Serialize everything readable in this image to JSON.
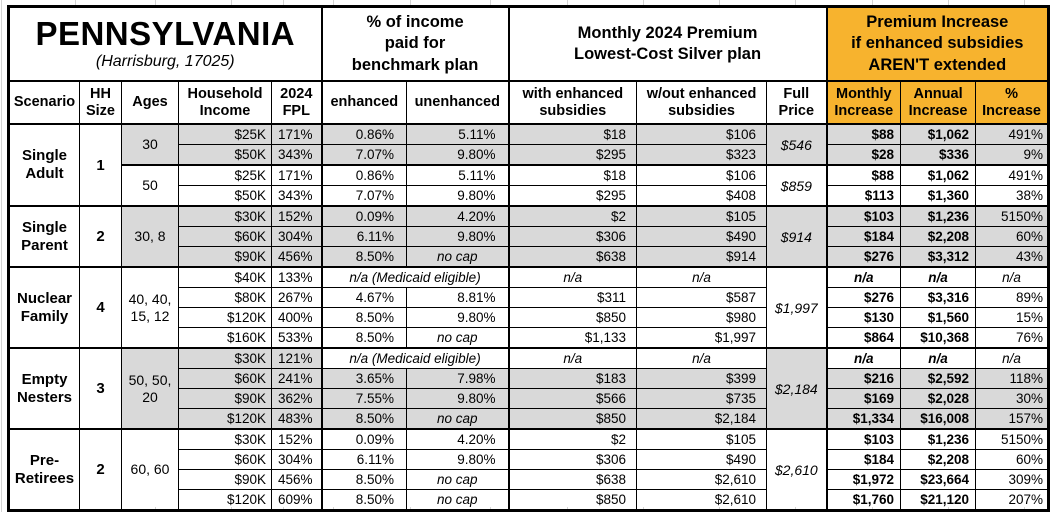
{
  "title": {
    "state": "PENNSYLVANIA",
    "subtitle": "(Harrisburg, 17025)"
  },
  "header_groups": {
    "pct_income": "% of income\npaid for\nbenchmark plan",
    "premium": "Monthly 2024 Premium\nLowest-Cost Silver plan",
    "increase": "Premium Increase\nif enhanced subsidies\nAREN'T extended"
  },
  "columns": {
    "scenario": "Scenario",
    "hh_size": "HH\nSize",
    "ages": "Ages",
    "income": "Household\nIncome",
    "fpl": "2024\nFPL",
    "enhanced": "enhanced",
    "unenhanced": "unenhanced",
    "with_sub": "with enhanced\nsubsidies",
    "wout_sub": "w/out enhanced\nsubsidies",
    "full_price": "Full\nPrice",
    "monthly": "Monthly\nIncrease",
    "annual": "Annual\nIncrease",
    "pct": "%\nIncrease"
  },
  "colors": {
    "header_orange": "#F7B32E",
    "row_shade": "#D9D9D9",
    "border": "#000000"
  },
  "sections": [
    {
      "scenario": "Single\nAdult",
      "hh_size": "1",
      "age_groups": [
        {
          "label": "30",
          "rows": 2,
          "shaded": true
        },
        {
          "label": "50",
          "rows": 2,
          "shaded": false
        }
      ],
      "full_price_groups": [
        {
          "value": "$546",
          "rows": 2,
          "shaded": true
        },
        {
          "value": "$859",
          "rows": 2,
          "shaded": false
        }
      ],
      "rows": [
        {
          "income": "$25K",
          "fpl": "171%",
          "enhanced": "0.86%",
          "unenhanced": "5.11%",
          "with_sub": "$18",
          "wout_sub": "$106",
          "monthly": "$88",
          "annual": "$1,062",
          "pct": "491%",
          "shaded": true
        },
        {
          "income": "$50K",
          "fpl": "343%",
          "enhanced": "7.07%",
          "unenhanced": "9.80%",
          "with_sub": "$295",
          "wout_sub": "$323",
          "monthly": "$28",
          "annual": "$336",
          "pct": "9%",
          "shaded": true
        },
        {
          "income": "$25K",
          "fpl": "171%",
          "enhanced": "0.86%",
          "unenhanced": "5.11%",
          "with_sub": "$18",
          "wout_sub": "$106",
          "monthly": "$88",
          "annual": "$1,062",
          "pct": "491%",
          "shaded": false
        },
        {
          "income": "$50K",
          "fpl": "343%",
          "enhanced": "7.07%",
          "unenhanced": "9.80%",
          "with_sub": "$295",
          "wout_sub": "$408",
          "monthly": "$113",
          "annual": "$1,360",
          "pct": "38%",
          "shaded": false
        }
      ]
    },
    {
      "scenario": "Single\nParent",
      "hh_size": "2",
      "age_groups": [
        {
          "label": "30, 8",
          "rows": 3,
          "shaded": true
        }
      ],
      "full_price_groups": [
        {
          "value": "$914",
          "rows": 3,
          "shaded": true
        }
      ],
      "rows": [
        {
          "income": "$30K",
          "fpl": "152%",
          "enhanced": "0.09%",
          "unenhanced": "4.20%",
          "with_sub": "$2",
          "wout_sub": "$105",
          "monthly": "$103",
          "annual": "$1,236",
          "pct": "5150%",
          "shaded": true
        },
        {
          "income": "$60K",
          "fpl": "304%",
          "enhanced": "6.11%",
          "unenhanced": "9.80%",
          "with_sub": "$306",
          "wout_sub": "$490",
          "monthly": "$184",
          "annual": "$2,208",
          "pct": "60%",
          "shaded": true
        },
        {
          "income": "$90K",
          "fpl": "456%",
          "enhanced": "8.50%",
          "unenhanced": "no cap",
          "with_sub": "$638",
          "wout_sub": "$914",
          "monthly": "$276",
          "annual": "$3,312",
          "pct": "43%",
          "shaded": true
        }
      ]
    },
    {
      "scenario": "Nuclear\nFamily",
      "hh_size": "4",
      "age_groups": [
        {
          "label": "40, 40,\n15, 12",
          "rows": 4,
          "shaded": false
        }
      ],
      "full_price_groups": [
        {
          "value": "$1,997",
          "rows": 4,
          "shaded": false
        }
      ],
      "rows": [
        {
          "income": "$40K",
          "fpl": "133%",
          "medicaid": true,
          "medicaid_label": "n/a (Medicaid eligible)",
          "with_sub": "n/a",
          "wout_sub": "n/a",
          "monthly": "n/a",
          "annual": "n/a",
          "pct": "n/a",
          "shaded": false
        },
        {
          "income": "$80K",
          "fpl": "267%",
          "enhanced": "4.67%",
          "unenhanced": "8.81%",
          "with_sub": "$311",
          "wout_sub": "$587",
          "monthly": "$276",
          "annual": "$3,316",
          "pct": "89%",
          "shaded": false
        },
        {
          "income": "$120K",
          "fpl": "400%",
          "enhanced": "8.50%",
          "unenhanced": "9.80%",
          "with_sub": "$850",
          "wout_sub": "$980",
          "monthly": "$130",
          "annual": "$1,560",
          "pct": "15%",
          "shaded": false
        },
        {
          "income": "$160K",
          "fpl": "533%",
          "enhanced": "8.50%",
          "unenhanced": "no cap",
          "with_sub": "$1,133",
          "wout_sub": "$1,997",
          "monthly": "$864",
          "annual": "$10,368",
          "pct": "76%",
          "shaded": false
        }
      ]
    },
    {
      "scenario": "Empty\nNesters",
      "hh_size": "3",
      "age_groups": [
        {
          "label": "50, 50,\n20",
          "rows": 4,
          "shaded": true
        }
      ],
      "full_price_groups": [
        {
          "value": "$2,184",
          "rows": 4,
          "shaded": true
        }
      ],
      "rows": [
        {
          "income": "$30K",
          "fpl": "121%",
          "medicaid": true,
          "medicaid_label": "n/a (Medicaid eligible)",
          "with_sub": "n/a",
          "wout_sub": "n/a",
          "monthly": "n/a",
          "annual": "n/a",
          "pct": "n/a",
          "shaded": true
        },
        {
          "income": "$60K",
          "fpl": "241%",
          "enhanced": "3.65%",
          "unenhanced": "7.98%",
          "with_sub": "$183",
          "wout_sub": "$399",
          "monthly": "$216",
          "annual": "$2,592",
          "pct": "118%",
          "shaded": true
        },
        {
          "income": "$90K",
          "fpl": "362%",
          "enhanced": "7.55%",
          "unenhanced": "9.80%",
          "with_sub": "$566",
          "wout_sub": "$735",
          "monthly": "$169",
          "annual": "$2,028",
          "pct": "30%",
          "shaded": true
        },
        {
          "income": "$120K",
          "fpl": "483%",
          "enhanced": "8.50%",
          "unenhanced": "no cap",
          "with_sub": "$850",
          "wout_sub": "$2,184",
          "monthly": "$1,334",
          "annual": "$16,008",
          "pct": "157%",
          "shaded": true
        }
      ]
    },
    {
      "scenario": "Pre-\nRetirees",
      "hh_size": "2",
      "age_groups": [
        {
          "label": "60, 60",
          "rows": 4,
          "shaded": false
        }
      ],
      "full_price_groups": [
        {
          "value": "$2,610",
          "rows": 4,
          "shaded": false
        }
      ],
      "rows": [
        {
          "income": "$30K",
          "fpl": "152%",
          "enhanced": "0.09%",
          "unenhanced": "4.20%",
          "with_sub": "$2",
          "wout_sub": "$105",
          "monthly": "$103",
          "annual": "$1,236",
          "pct": "5150%",
          "shaded": false
        },
        {
          "income": "$60K",
          "fpl": "304%",
          "enhanced": "6.11%",
          "unenhanced": "9.80%",
          "with_sub": "$306",
          "wout_sub": "$490",
          "monthly": "$184",
          "annual": "$2,208",
          "pct": "60%",
          "shaded": false
        },
        {
          "income": "$90K",
          "fpl": "456%",
          "enhanced": "8.50%",
          "unenhanced": "no cap",
          "with_sub": "$638",
          "wout_sub": "$2,610",
          "monthly": "$1,972",
          "annual": "$23,664",
          "pct": "309%",
          "shaded": false
        },
        {
          "income": "$120K",
          "fpl": "609%",
          "enhanced": "8.50%",
          "unenhanced": "no cap",
          "with_sub": "$850",
          "wout_sub": "$2,610",
          "monthly": "$1,760",
          "annual": "$21,120",
          "pct": "207%",
          "shaded": false
        }
      ]
    }
  ],
  "chart_data": {
    "type": "table",
    "title": "PENNSYLVANIA (Harrisburg, 17025)",
    "column_groups": [
      "% of income paid for benchmark plan",
      "Monthly 2024 Premium Lowest-Cost Silver plan",
      "Premium Increase if enhanced subsidies AREN'T extended"
    ],
    "headers": [
      "Scenario",
      "HH Size",
      "Ages",
      "Household Income",
      "2024 FPL",
      "enhanced",
      "unenhanced",
      "with enhanced subsidies",
      "w/out enhanced subsidies",
      "Full Price",
      "Monthly Increase",
      "Annual Increase",
      "% Increase"
    ],
    "rows": [
      [
        "Single Adult",
        "1",
        "30",
        "$25K",
        "171%",
        "0.86%",
        "5.11%",
        "$18",
        "$106",
        "$546",
        "$88",
        "$1,062",
        "491%"
      ],
      [
        "Single Adult",
        "1",
        "30",
        "$50K",
        "343%",
        "7.07%",
        "9.80%",
        "$295",
        "$323",
        "$546",
        "$28",
        "$336",
        "9%"
      ],
      [
        "Single Adult",
        "1",
        "50",
        "$25K",
        "171%",
        "0.86%",
        "5.11%",
        "$18",
        "$106",
        "$859",
        "$88",
        "$1,062",
        "491%"
      ],
      [
        "Single Adult",
        "1",
        "50",
        "$50K",
        "343%",
        "7.07%",
        "9.80%",
        "$295",
        "$408",
        "$859",
        "$113",
        "$1,360",
        "38%"
      ],
      [
        "Single Parent",
        "2",
        "30, 8",
        "$30K",
        "152%",
        "0.09%",
        "4.20%",
        "$2",
        "$105",
        "$914",
        "$103",
        "$1,236",
        "5150%"
      ],
      [
        "Single Parent",
        "2",
        "30, 8",
        "$60K",
        "304%",
        "6.11%",
        "9.80%",
        "$306",
        "$490",
        "$914",
        "$184",
        "$2,208",
        "60%"
      ],
      [
        "Single Parent",
        "2",
        "30, 8",
        "$90K",
        "456%",
        "8.50%",
        "no cap",
        "$638",
        "$914",
        "$914",
        "$276",
        "$3,312",
        "43%"
      ],
      [
        "Nuclear Family",
        "4",
        "40, 40, 15, 12",
        "$40K",
        "133%",
        "n/a (Medicaid eligible)",
        "n/a (Medicaid eligible)",
        "n/a",
        "n/a",
        "$1,997",
        "n/a",
        "n/a",
        "n/a"
      ],
      [
        "Nuclear Family",
        "4",
        "40, 40, 15, 12",
        "$80K",
        "267%",
        "4.67%",
        "8.81%",
        "$311",
        "$587",
        "$1,997",
        "$276",
        "$3,316",
        "89%"
      ],
      [
        "Nuclear Family",
        "4",
        "40, 40, 15, 12",
        "$120K",
        "400%",
        "8.50%",
        "9.80%",
        "$850",
        "$980",
        "$1,997",
        "$130",
        "$1,560",
        "15%"
      ],
      [
        "Nuclear Family",
        "4",
        "40, 40, 15, 12",
        "$160K",
        "533%",
        "8.50%",
        "no cap",
        "$1,133",
        "$1,997",
        "$1,997",
        "$864",
        "$10,368",
        "76%"
      ],
      [
        "Empty Nesters",
        "3",
        "50, 50, 20",
        "$30K",
        "121%",
        "n/a (Medicaid eligible)",
        "n/a (Medicaid eligible)",
        "n/a",
        "n/a",
        "$2,184",
        "n/a",
        "n/a",
        "n/a"
      ],
      [
        "Empty Nesters",
        "3",
        "50, 50, 20",
        "$60K",
        "241%",
        "3.65%",
        "7.98%",
        "$183",
        "$399",
        "$2,184",
        "$216",
        "$2,592",
        "118%"
      ],
      [
        "Empty Nesters",
        "3",
        "50, 50, 20",
        "$90K",
        "362%",
        "7.55%",
        "9.80%",
        "$566",
        "$735",
        "$2,184",
        "$169",
        "$2,028",
        "30%"
      ],
      [
        "Empty Nesters",
        "3",
        "50, 50, 20",
        "$120K",
        "483%",
        "8.50%",
        "no cap",
        "$850",
        "$2,184",
        "$2,184",
        "$1,334",
        "$16,008",
        "157%"
      ],
      [
        "Pre-Retirees",
        "2",
        "60, 60",
        "$30K",
        "152%",
        "0.09%",
        "4.20%",
        "$2",
        "$105",
        "$2,610",
        "$103",
        "$1,236",
        "5150%"
      ],
      [
        "Pre-Retirees",
        "2",
        "60, 60",
        "$60K",
        "304%",
        "6.11%",
        "9.80%",
        "$306",
        "$490",
        "$2,610",
        "$184",
        "$2,208",
        "60%"
      ],
      [
        "Pre-Retirees",
        "2",
        "60, 60",
        "$90K",
        "456%",
        "8.50%",
        "no cap",
        "$638",
        "$2,610",
        "$2,610",
        "$1,972",
        "$23,664",
        "309%"
      ],
      [
        "Pre-Retirees",
        "2",
        "60, 60",
        "$120K",
        "609%",
        "8.50%",
        "no cap",
        "$850",
        "$2,610",
        "$2,610",
        "$1,760",
        "$21,120",
        "207%"
      ]
    ]
  }
}
